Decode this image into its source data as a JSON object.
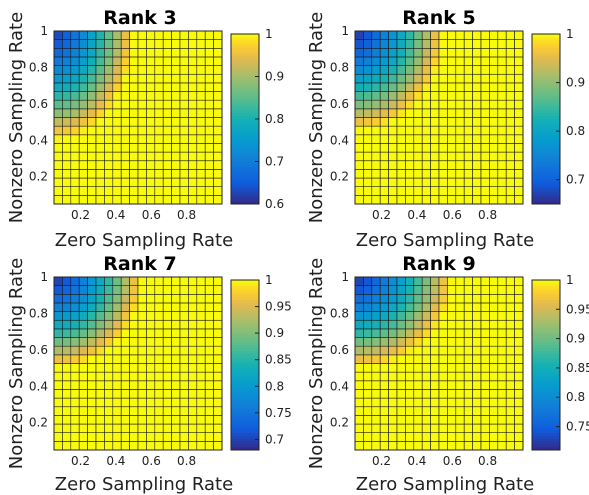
{
  "chart_data": [
    {
      "type": "heatmap",
      "title": "Rank 3",
      "xlabel": "Zero Sampling Rate",
      "ylabel": "Nonzero Sampling Rate",
      "xlim": [
        0.05,
        1
      ],
      "ylim": [
        0.05,
        1
      ],
      "xticks": [
        "0.2",
        "0.4",
        "0.6",
        "0.8"
      ],
      "yticks": [
        "0.2",
        "0.4",
        "0.6",
        "0.8",
        "1"
      ],
      "grid_size": 20,
      "colorbar": {
        "min": 0.6,
        "max": 1,
        "ticks": [
          "0.6",
          "0.7",
          "0.8",
          "0.9",
          "1"
        ]
      },
      "low_region": {
        "value_at_corner": 0.62,
        "radius_x": 0.45,
        "radius_y": 0.6
      }
    },
    {
      "type": "heatmap",
      "title": "Rank 5",
      "xlabel": "Zero Sampling Rate",
      "ylabel": "Nonzero Sampling Rate",
      "xlim": [
        0.05,
        1
      ],
      "ylim": [
        0.05,
        1
      ],
      "xticks": [
        "0.2",
        "0.4",
        "0.6",
        "0.8"
      ],
      "yticks": [
        "0.2",
        "0.4",
        "0.6",
        "0.8",
        "1"
      ],
      "grid_size": 20,
      "colorbar": {
        "min": 0.65,
        "max": 1,
        "ticks": [
          "0.7",
          "0.8",
          "0.9",
          "1"
        ]
      },
      "low_region": {
        "value_at_corner": 0.66,
        "radius_x": 0.5,
        "radius_y": 0.55
      }
    },
    {
      "type": "heatmap",
      "title": "Rank 7",
      "xlabel": "Zero Sampling Rate",
      "ylabel": "Nonzero Sampling Rate",
      "xlim": [
        0.05,
        1
      ],
      "ylim": [
        0.05,
        1
      ],
      "xticks": [
        "0.2",
        "0.4",
        "0.6",
        "0.8"
      ],
      "yticks": [
        "0.2",
        "0.4",
        "0.6",
        "0.8",
        "1"
      ],
      "grid_size": 20,
      "colorbar": {
        "min": 0.68,
        "max": 1,
        "ticks": [
          "0.7",
          "0.75",
          "0.8",
          "0.85",
          "0.9",
          "0.95",
          "1"
        ]
      },
      "low_region": {
        "value_at_corner": 0.69,
        "radius_x": 0.5,
        "radius_y": 0.5
      }
    },
    {
      "type": "heatmap",
      "title": "Rank 9",
      "xlabel": "Zero Sampling Rate",
      "ylabel": "Nonzero Sampling Rate",
      "xlim": [
        0.05,
        1
      ],
      "ylim": [
        0.05,
        1
      ],
      "xticks": [
        "0.2",
        "0.4",
        "0.6",
        "0.8"
      ],
      "yticks": [
        "0.2",
        "0.4",
        "0.6",
        "0.8",
        "1"
      ],
      "grid_size": 20,
      "colorbar": {
        "min": 0.71,
        "max": 1,
        "ticks": [
          "0.75",
          "0.8",
          "0.85",
          "0.9",
          "0.95",
          "1"
        ]
      },
      "low_region": {
        "value_at_corner": 0.72,
        "radius_x": 0.55,
        "radius_y": 0.5
      }
    }
  ]
}
